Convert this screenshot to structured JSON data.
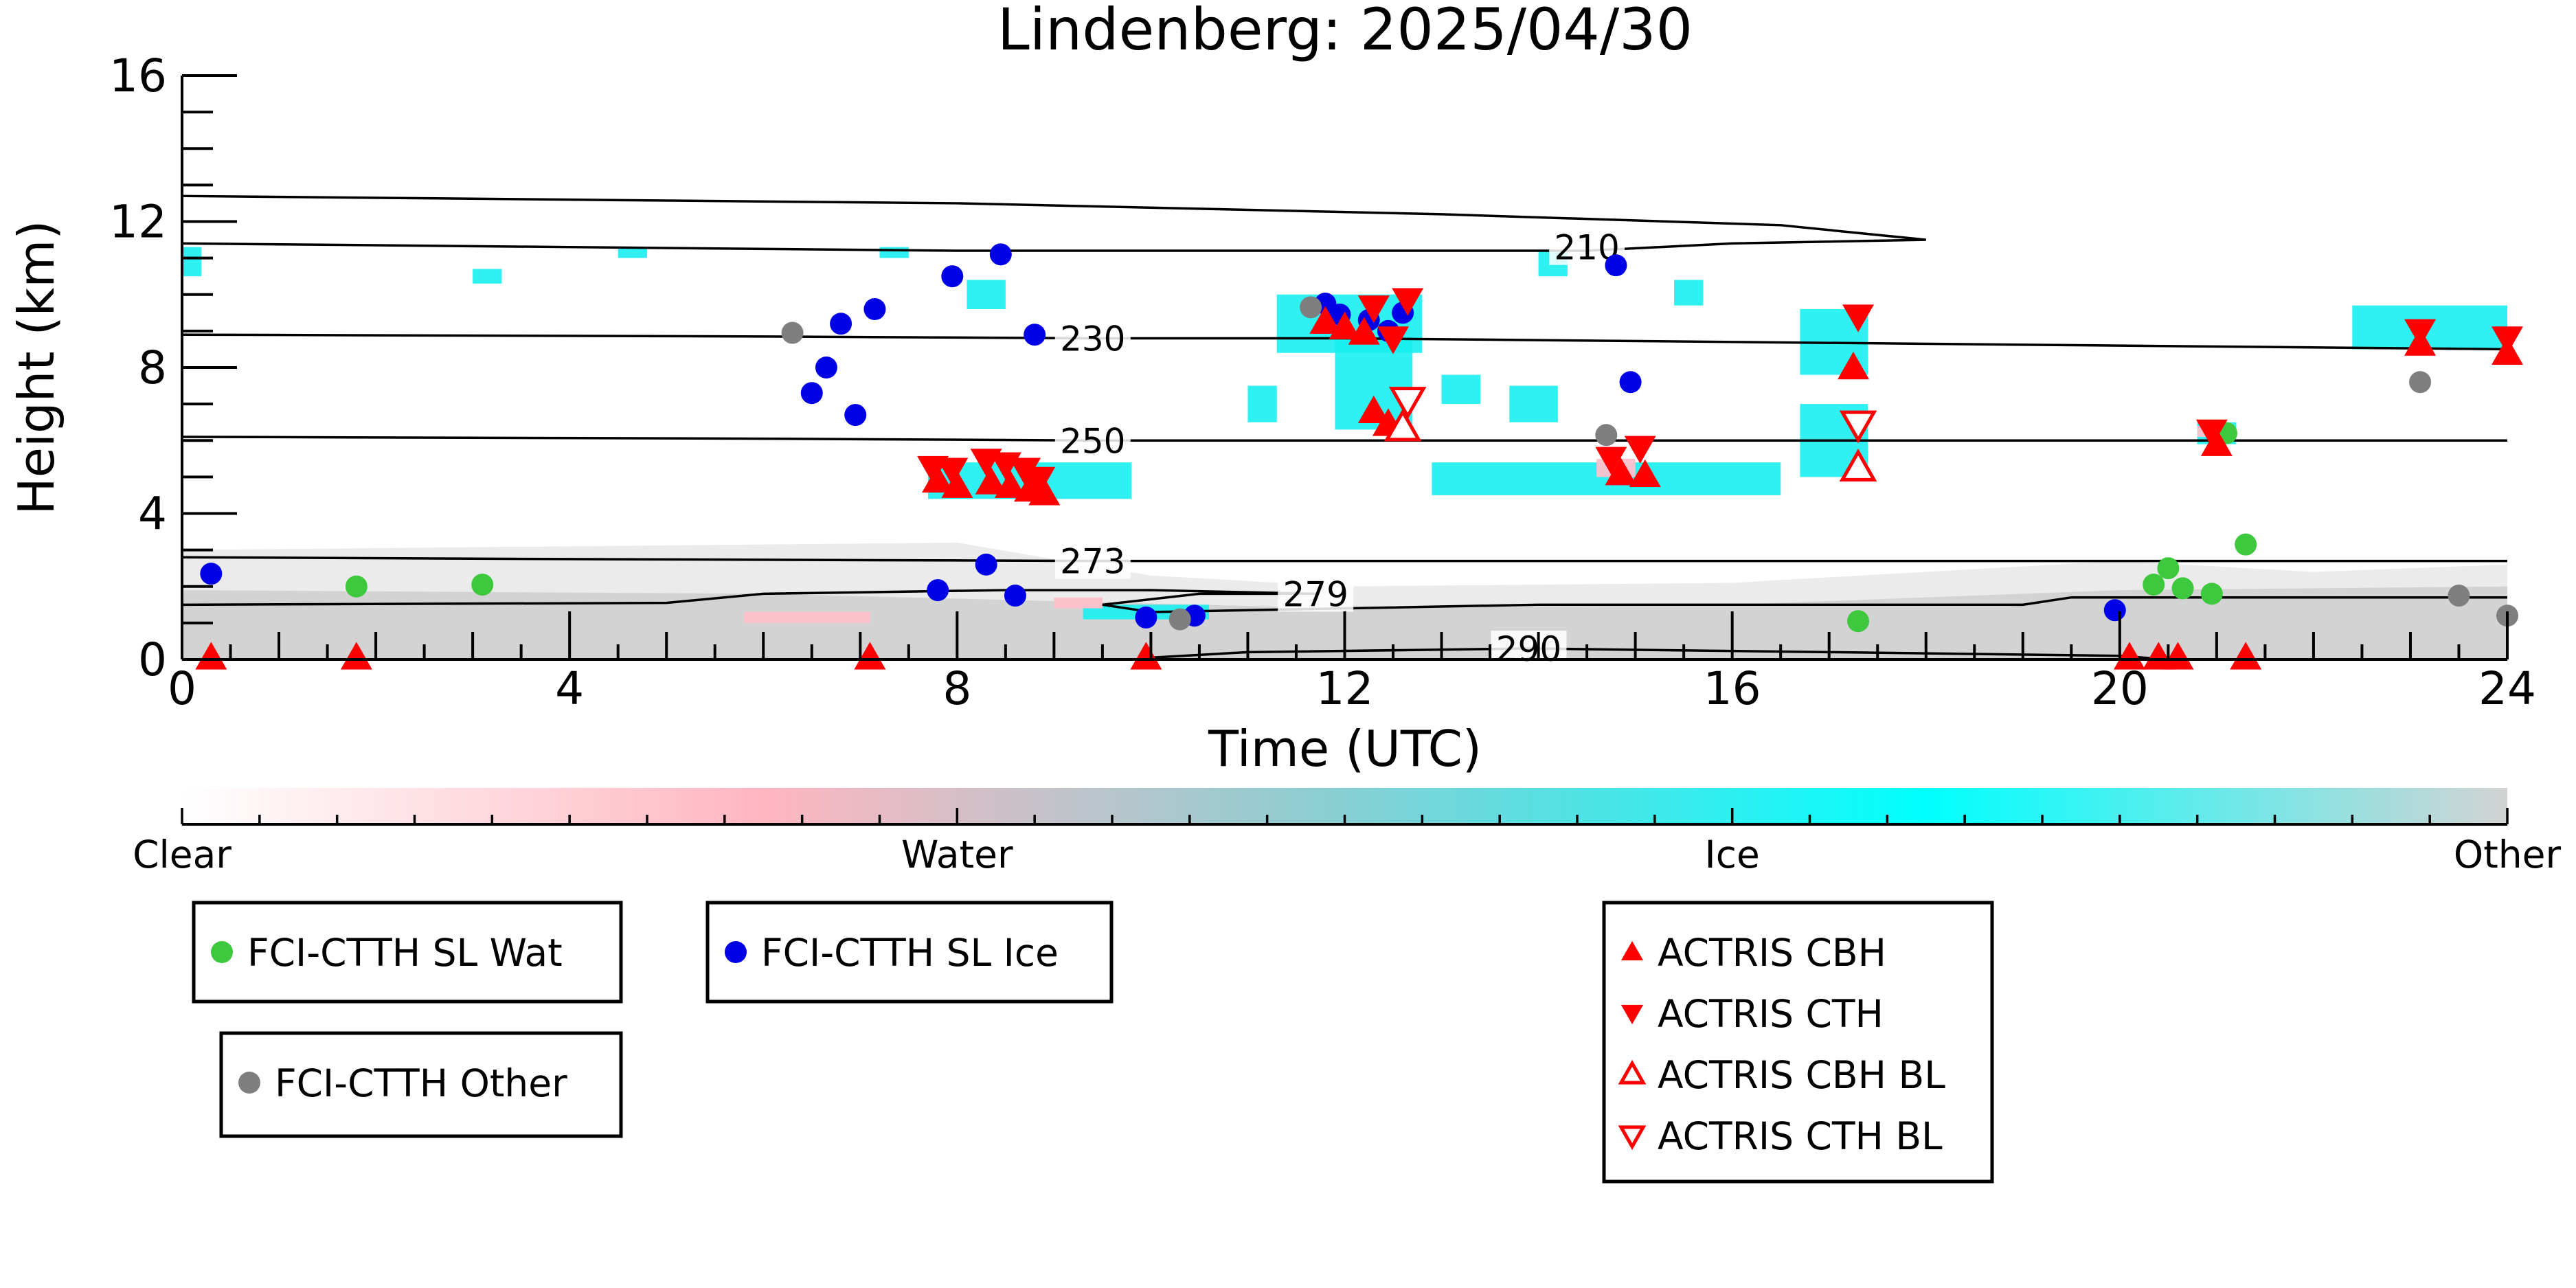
{
  "chart_data": {
    "type": "scatter",
    "title": "Lindenberg: 2025/04/30",
    "xlabel": "Time (UTC)",
    "ylabel": "Height (km)",
    "xlim": [
      0,
      24
    ],
    "ylim": [
      0,
      16
    ],
    "xticks": [
      0,
      4,
      8,
      12,
      16,
      20,
      24
    ],
    "yticks": [
      0,
      4,
      8,
      12,
      16
    ],
    "grid": false,
    "colors": {
      "water_marker": "#3ec83e",
      "ice_marker": "#0000e6",
      "other_marker": "#7f7f7f",
      "actris": "#ff0000",
      "cloud_ice": "#18f0f0",
      "cloud_water": "#ffc0cb",
      "cloud_other": "#d3d3d3"
    },
    "colorbar": {
      "labels": [
        "Clear",
        "Water",
        "Ice",
        "Other"
      ],
      "stops": [
        "#ffffff",
        "#ffb6c1",
        "#87cfd3",
        "#00ffff",
        "#d3d3d3"
      ]
    },
    "temperature_contours": [
      {
        "label": "210",
        "label_at": [
          14.5,
          11.3
        ],
        "points": [
          [
            0,
            11.4
          ],
          [
            4,
            11.3
          ],
          [
            8,
            11.2
          ],
          [
            12,
            11.2
          ],
          [
            14.5,
            11.2
          ],
          [
            16,
            11.4
          ],
          [
            18,
            11.5
          ],
          [
            16.5,
            11.9
          ],
          [
            13,
            12.2
          ],
          [
            8,
            12.5
          ],
          [
            4,
            12.6
          ],
          [
            0,
            12.7
          ]
        ]
      },
      {
        "label": "230",
        "label_at": [
          9.4,
          8.8
        ],
        "points": [
          [
            0,
            8.9
          ],
          [
            6,
            8.85
          ],
          [
            9.4,
            8.8
          ],
          [
            12,
            8.8
          ],
          [
            16,
            8.7
          ],
          [
            20,
            8.6
          ],
          [
            24,
            8.5
          ]
        ]
      },
      {
        "label": "250",
        "label_at": [
          9.4,
          6.0
        ],
        "points": [
          [
            0,
            6.1
          ],
          [
            6,
            6.05
          ],
          [
            9.4,
            6.0
          ],
          [
            12,
            6.0
          ],
          [
            16,
            6.0
          ],
          [
            20,
            6.0
          ],
          [
            24,
            6.0
          ]
        ]
      },
      {
        "label": "273",
        "label_at": [
          9.4,
          2.7
        ],
        "points": [
          [
            0,
            2.8
          ],
          [
            4,
            2.75
          ],
          [
            9.4,
            2.7
          ],
          [
            14,
            2.7
          ],
          [
            18,
            2.7
          ],
          [
            24,
            2.7
          ]
        ]
      },
      {
        "label": "279",
        "label_at": [
          11.7,
          1.8
        ],
        "points": [
          [
            0,
            1.5
          ],
          [
            5,
            1.55
          ],
          [
            6,
            1.8
          ],
          [
            8.5,
            1.9
          ],
          [
            10,
            1.9
          ],
          [
            11.7,
            1.8
          ],
          [
            10.5,
            1.8
          ],
          [
            9.5,
            1.5
          ],
          [
            10,
            1.3
          ],
          [
            12,
            1.4
          ],
          [
            14,
            1.5
          ],
          [
            19,
            1.5
          ],
          [
            19.5,
            1.7
          ],
          [
            24,
            1.7
          ]
        ]
      },
      {
        "label": "290",
        "label_at": [
          13.9,
          0.3
        ],
        "points": [
          [
            10,
            0.05
          ],
          [
            11,
            0.2
          ],
          [
            13.9,
            0.3
          ],
          [
            17,
            0.2
          ],
          [
            20,
            0.1
          ],
          [
            20.5,
            0.0
          ]
        ]
      }
    ],
    "ice_clouds": [
      {
        "x": [
          0.0,
          0.2
        ],
        "y": [
          10.5,
          11.3
        ]
      },
      {
        "x": [
          3.0,
          3.3
        ],
        "y": [
          10.3,
          10.7
        ]
      },
      {
        "x": [
          4.5,
          4.8
        ],
        "y": [
          11.0,
          11.3
        ]
      },
      {
        "x": [
          7.2,
          7.5
        ],
        "y": [
          11.0,
          11.3
        ]
      },
      {
        "x": [
          8.1,
          8.5
        ],
        "y": [
          9.6,
          10.4
        ]
      },
      {
        "x": [
          7.7,
          9.8
        ],
        "y": [
          4.4,
          5.4
        ]
      },
      {
        "x": [
          9.3,
          10.6
        ],
        "y": [
          1.1,
          1.5
        ]
      },
      {
        "x": [
          11.3,
          12.8
        ],
        "y": [
          8.4,
          10.0
        ]
      },
      {
        "x": [
          11.9,
          12.7
        ],
        "y": [
          6.3,
          8.8
        ]
      },
      {
        "x": [
          11.0,
          11.3
        ],
        "y": [
          6.5,
          7.5
        ]
      },
      {
        "x": [
          13.0,
          13.4
        ],
        "y": [
          7.0,
          7.8
        ]
      },
      {
        "x": [
          13.7,
          14.2
        ],
        "y": [
          6.5,
          7.5
        ]
      },
      {
        "x": [
          15.4,
          15.7
        ],
        "y": [
          9.7,
          10.4
        ]
      },
      {
        "x": [
          12.9,
          16.5
        ],
        "y": [
          4.5,
          5.4
        ]
      },
      {
        "x": [
          14.0,
          14.3
        ],
        "y": [
          10.5,
          11.2
        ]
      },
      {
        "x": [
          16.7,
          17.4
        ],
        "y": [
          7.8,
          9.6
        ]
      },
      {
        "x": [
          16.7,
          17.4
        ],
        "y": [
          5.0,
          7.0
        ]
      },
      {
        "x": [
          20.8,
          21.2
        ],
        "y": [
          5.9,
          6.5
        ]
      },
      {
        "x": [
          22.4,
          24.0
        ],
        "y": [
          8.5,
          9.7
        ]
      }
    ],
    "water_clouds": [
      {
        "x": [
          5.8,
          7.1
        ],
        "y": [
          1.0,
          1.3
        ]
      },
      {
        "x": [
          9.0,
          9.5
        ],
        "y": [
          1.4,
          1.7
        ]
      },
      {
        "x": [
          14.6,
          15.0
        ],
        "y": [
          5.0,
          5.5
        ]
      },
      {
        "x": [
          20.8,
          21.1
        ],
        "y": [
          6.1,
          6.4
        ]
      }
    ],
    "other_region": {
      "x": [
        0,
        24
      ],
      "top": [
        [
          0,
          3.0
        ],
        [
          4,
          3.1
        ],
        [
          8,
          3.2
        ],
        [
          10,
          2.3
        ],
        [
          12,
          2.0
        ],
        [
          16,
          2.1
        ],
        [
          20,
          2.7
        ],
        [
          22,
          2.4
        ],
        [
          24,
          2.6
        ]
      ],
      "dense_top": [
        [
          0,
          1.9
        ],
        [
          6,
          1.8
        ],
        [
          9,
          1.6
        ],
        [
          12,
          1.4
        ],
        [
          16,
          1.5
        ],
        [
          20,
          1.9
        ],
        [
          24,
          2.0
        ]
      ]
    },
    "series": [
      {
        "name": "FCI-CTTH SL Wat",
        "marker": "circle",
        "color": "#3ec83e",
        "points": [
          [
            1.8,
            2.0
          ],
          [
            3.1,
            2.05
          ],
          [
            17.3,
            1.05
          ],
          [
            20.35,
            2.05
          ],
          [
            20.5,
            2.5
          ],
          [
            20.65,
            1.95
          ],
          [
            20.95,
            1.8
          ],
          [
            21.1,
            6.2
          ],
          [
            21.3,
            3.15
          ]
        ]
      },
      {
        "name": "FCI-CTTH SL Ice",
        "marker": "circle",
        "color": "#0000e6",
        "points": [
          [
            0.3,
            2.35
          ],
          [
            6.5,
            7.3
          ],
          [
            6.65,
            8.0
          ],
          [
            6.8,
            9.2
          ],
          [
            6.95,
            6.7
          ],
          [
            7.15,
            9.6
          ],
          [
            7.8,
            1.9
          ],
          [
            7.95,
            10.5
          ],
          [
            8.3,
            2.6
          ],
          [
            8.45,
            11.1
          ],
          [
            8.6,
            1.75
          ],
          [
            8.8,
            8.9
          ],
          [
            9.95,
            1.15
          ],
          [
            10.45,
            1.2
          ],
          [
            11.8,
            9.75
          ],
          [
            11.95,
            9.45
          ],
          [
            12.25,
            9.3
          ],
          [
            12.45,
            9.0
          ],
          [
            12.6,
            9.5
          ],
          [
            14.8,
            10.8
          ],
          [
            14.95,
            7.6
          ],
          [
            19.95,
            1.35
          ]
        ]
      },
      {
        "name": "FCI-CTTH Other",
        "marker": "circle",
        "color": "#7f7f7f",
        "points": [
          [
            6.3,
            8.95
          ],
          [
            10.3,
            1.1
          ],
          [
            11.65,
            9.65
          ],
          [
            14.7,
            6.15
          ],
          [
            23.1,
            7.6
          ],
          [
            23.5,
            1.75
          ],
          [
            24.0,
            1.2
          ]
        ]
      },
      {
        "name": "ACTRIS CBH",
        "marker": "triangle-up",
        "color": "#ff0000",
        "filled": true,
        "points": [
          [
            0.3,
            0.05
          ],
          [
            1.8,
            0.05
          ],
          [
            7.1,
            0.05
          ],
          [
            7.8,
            4.9
          ],
          [
            8.0,
            4.75
          ],
          [
            8.35,
            4.85
          ],
          [
            8.55,
            4.75
          ],
          [
            8.75,
            4.65
          ],
          [
            8.9,
            4.55
          ],
          [
            9.95,
            0.05
          ],
          [
            11.8,
            9.25
          ],
          [
            12.0,
            9.1
          ],
          [
            12.2,
            8.95
          ],
          [
            12.3,
            6.8
          ],
          [
            12.45,
            6.45
          ],
          [
            12.6,
            6.4
          ],
          [
            14.85,
            5.1
          ],
          [
            15.1,
            5.05
          ],
          [
            17.25,
            8.0
          ],
          [
            20.1,
            0.05
          ],
          [
            20.4,
            0.05
          ],
          [
            20.6,
            0.05
          ],
          [
            21.3,
            0.05
          ],
          [
            21.0,
            5.9
          ],
          [
            23.1,
            8.65
          ],
          [
            24.0,
            8.4
          ]
        ]
      },
      {
        "name": "ACTRIS CTH",
        "marker": "triangle-down",
        "color": "#ff0000",
        "filled": true,
        "points": [
          [
            7.75,
            5.25
          ],
          [
            7.95,
            5.2
          ],
          [
            8.3,
            5.45
          ],
          [
            8.5,
            5.35
          ],
          [
            8.7,
            5.2
          ],
          [
            8.85,
            4.95
          ],
          [
            12.3,
            9.65
          ],
          [
            12.65,
            9.85
          ],
          [
            12.5,
            8.8
          ],
          [
            14.75,
            5.5
          ],
          [
            15.05,
            5.8
          ],
          [
            17.3,
            9.4
          ],
          [
            20.95,
            6.25
          ],
          [
            23.1,
            9.0
          ],
          [
            24.0,
            8.8
          ]
        ]
      },
      {
        "name": "ACTRIS CBH BL",
        "marker": "triangle-up",
        "color": "#ff0000",
        "filled": false,
        "points": [
          [
            12.6,
            6.35
          ],
          [
            17.3,
            5.25
          ]
        ]
      },
      {
        "name": "ACTRIS CTH BL",
        "marker": "triangle-down",
        "color": "#ff0000",
        "filled": false,
        "points": [
          [
            12.65,
            7.1
          ],
          [
            17.3,
            6.45
          ]
        ]
      }
    ],
    "legend": {
      "placement": "below",
      "groups": [
        [
          "FCI-CTTH SL Wat"
        ],
        [
          "FCI-CTTH SL Ice"
        ],
        [
          "FCI-CTTH Other"
        ],
        [
          "ACTRIS CBH",
          "ACTRIS CTH",
          "ACTRIS CBH BL",
          "ACTRIS CTH BL"
        ]
      ]
    }
  }
}
